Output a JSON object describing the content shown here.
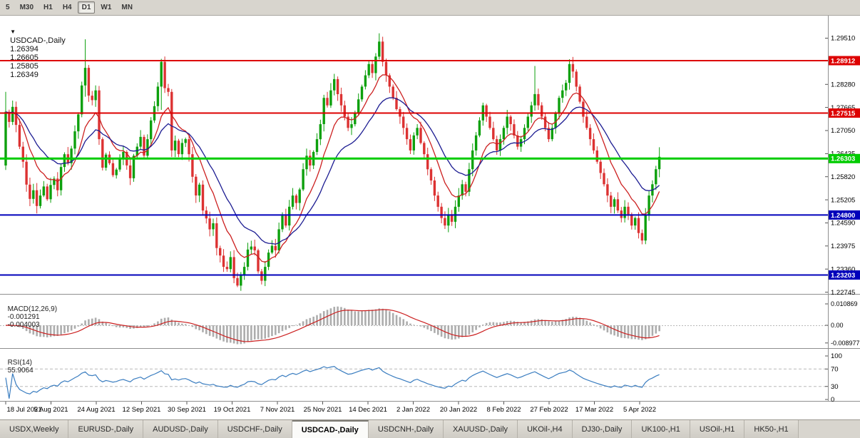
{
  "toolbar": {
    "periods": [
      {
        "label": "5",
        "active": false
      },
      {
        "label": "M30",
        "active": false
      },
      {
        "label": "H1",
        "active": false
      },
      {
        "label": "H4",
        "active": false
      },
      {
        "label": "D1",
        "active": true
      },
      {
        "label": "W1",
        "active": false
      },
      {
        "label": "MN",
        "active": false
      }
    ]
  },
  "chart": {
    "title": "USDCAD-,Daily",
    "ohlc": {
      "open": "1.26394",
      "high": "1.26605",
      "low": "1.25805",
      "close": "1.26349"
    }
  },
  "indicators": {
    "macd": {
      "label": "MACD(12,26,9)",
      "main": "-0.001291",
      "signal": "-0.004003",
      "axis": [
        "0.010869",
        "0.00",
        "-0.008977"
      ]
    },
    "rsi": {
      "label": "RSI(14)",
      "value": "55.9064",
      "axis": [
        "100",
        "70",
        "30",
        "0"
      ],
      "levels": [
        70,
        30
      ]
    }
  },
  "price_axis": {
    "ticks": [
      "1.29510",
      "1.28280",
      "1.27665",
      "1.27050",
      "1.26435",
      "1.25820",
      "1.25205",
      "1.24590",
      "1.23975",
      "1.23360",
      "1.22745"
    ]
  },
  "levels": [
    {
      "label": "1.28912",
      "price": 1.28912,
      "color": "#dd0000",
      "width": 2
    },
    {
      "label": "1.27515",
      "price": 1.27515,
      "color": "#dd0000",
      "width": 2
    },
    {
      "label": "1.26303",
      "price": 1.26303,
      "color": "#00cc00",
      "width": 3
    },
    {
      "label": "1.24800",
      "price": 1.248,
      "color": "#0000bb",
      "width": 2
    },
    {
      "label": "1.23203",
      "price": 1.23203,
      "color": "#0000bb",
      "width": 2
    }
  ],
  "dates": [
    "18 Jul 2021",
    "5 Aug 2021",
    "24 Aug 2021",
    "12 Sep 2021",
    "30 Sep 2021",
    "19 Oct 2021",
    "7 Nov 2021",
    "25 Nov 2021",
    "14 Dec 2021",
    "2 Jan 2022",
    "20 Jan 2022",
    "8 Feb 2022",
    "27 Feb 2022",
    "17 Mar 2022",
    "5 Apr 2022"
  ],
  "tabs": [
    {
      "label": "USDX,Weekly",
      "selected": false
    },
    {
      "label": "EURUSD-,Daily",
      "selected": false
    },
    {
      "label": "AUDUSD-,Daily",
      "selected": false
    },
    {
      "label": "USDCHF-,Daily",
      "selected": false
    },
    {
      "label": "USDCAD-,Daily",
      "selected": true
    },
    {
      "label": "USDCNH-,Daily",
      "selected": false
    },
    {
      "label": "XAUUSD-,Daily",
      "selected": false
    },
    {
      "label": "UKOil-,H4",
      "selected": false
    },
    {
      "label": "DJ30-,Daily",
      "selected": false
    },
    {
      "label": "UK100-,H1",
      "selected": false
    },
    {
      "label": "USOil-,H1",
      "selected": false
    },
    {
      "label": "HK50-,H1",
      "selected": false
    }
  ],
  "colors": {
    "candle_up": "#0da00d",
    "candle_down": "#dc3232",
    "ma_fast": "#cc2020",
    "ma_slow": "#1c1c92",
    "macd_hist": "#adadad",
    "macd_signal": "#cc2020",
    "rsi_line": "#3a7dc0",
    "level_red": "#dd0000",
    "level_green": "#00cc00",
    "level_blue": "#0000bb",
    "axis_text": "#000000",
    "panel_bg": "#ffffff",
    "chrome_bg": "#d8d5ce"
  },
  "chart_data": {
    "type": "candlestick",
    "symbol": "USDCAD-",
    "timeframe": "Daily",
    "x_range": [
      "18 Jul 2021",
      "5 Apr 2022"
    ],
    "y_range": [
      1.22745,
      1.2951
    ],
    "horizontal_levels": [
      1.28912,
      1.27515,
      1.26303,
      1.248,
      1.23203
    ],
    "derived": {
      "ma_fast_period": 10,
      "ma_slow_period": 21,
      "macd": [
        12,
        26,
        9
      ],
      "rsi_period": 14
    },
    "open0": 1.2612,
    "closes": [
      1.2755,
      1.2728,
      1.2768,
      1.272,
      1.2662,
      1.2622,
      1.2561,
      1.2523,
      1.2546,
      1.2504,
      1.2532,
      1.2556,
      1.2522,
      1.256,
      1.2577,
      1.2546,
      1.2608,
      1.2642,
      1.2618,
      1.2657,
      1.2703,
      1.2748,
      1.2825,
      1.2872,
      1.2798,
      1.2786,
      1.2812,
      1.2682,
      1.2606,
      1.2641,
      1.2618,
      1.2586,
      1.2601,
      1.2632,
      1.2648,
      1.2612,
      1.2578,
      1.2638,
      1.2662,
      1.2688,
      1.2638,
      1.2682,
      1.2732,
      1.277,
      1.2822,
      1.2888,
      1.2818,
      1.2808,
      1.2652,
      1.2678,
      1.2642,
      1.2672,
      1.2682,
      1.2642,
      1.2582,
      1.2532,
      1.2561,
      1.2492,
      1.2471,
      1.2442,
      1.2458,
      1.2392,
      1.2372,
      1.2342,
      1.2336,
      1.2368,
      1.2312,
      1.2292,
      1.2322,
      1.2342,
      1.2388,
      1.2396,
      1.2386,
      1.233,
      1.2305,
      1.2342,
      1.238,
      1.2398,
      1.2386,
      1.2442,
      1.2478,
      1.2452,
      1.2502,
      1.2532,
      1.2512,
      1.2548,
      1.2602,
      1.2638,
      1.2612,
      1.2648,
      1.2682,
      1.2722,
      1.2792,
      1.2772,
      1.2812,
      1.2842,
      1.2802,
      1.2772,
      1.2742,
      1.2712,
      1.2722,
      1.2752,
      1.2788,
      1.2822,
      1.2852,
      1.2882,
      1.2858,
      1.2902,
      1.2942,
      1.2888,
      1.2852,
      1.2822,
      1.2792,
      1.2762,
      1.2742,
      1.2712,
      1.2682,
      1.2652,
      1.2692,
      1.2712,
      1.2672,
      1.2642,
      1.2602,
      1.2572,
      1.2532,
      1.2502,
      1.2472,
      1.2452,
      1.2482,
      1.2462,
      1.2502,
      1.2532,
      1.2562,
      1.2542,
      1.2602,
      1.2652,
      1.2692,
      1.2732,
      1.2772,
      1.2742,
      1.2712,
      1.2682,
      1.2652,
      1.2682,
      1.2712,
      1.2742,
      1.2722,
      1.2692,
      1.2662,
      1.2682,
      1.2712,
      1.2742,
      1.2772,
      1.2802,
      1.2772,
      1.2742,
      1.2712,
      1.2682,
      1.2712,
      1.2752,
      1.2792,
      1.2812,
      1.2832,
      1.2882,
      1.2862,
      1.2822,
      1.2782,
      1.2742,
      1.2712,
      1.2682,
      1.2652,
      1.2622,
      1.2592,
      1.2562,
      1.2532,
      1.2502,
      1.2522,
      1.2492,
      1.2472,
      1.2502,
      1.2482,
      1.2452,
      1.2472,
      1.2432,
      1.2412,
      1.2482,
      1.2532,
      1.2562,
      1.2602,
      1.2635
    ],
    "wick_overrides": {
      "0": [
        1.2808,
        1.26
      ],
      "23": [
        1.2948,
        1.2795
      ],
      "45": [
        1.2896,
        1.276
      ],
      "67": [
        null,
        1.2288
      ],
      "74": [
        null,
        1.2295
      ],
      "108": [
        1.2964,
        null
      ],
      "153": [
        1.2877,
        null
      ],
      "163": [
        1.2895,
        null
      ],
      "164": [
        1.2901,
        null
      ],
      "184": [
        null,
        1.2402
      ],
      "189": [
        1.26605,
        1.25805
      ]
    }
  }
}
